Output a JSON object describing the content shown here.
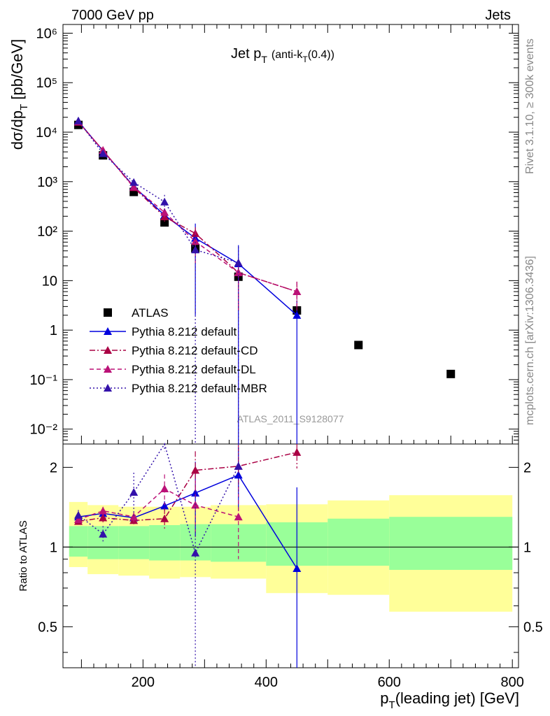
{
  "header": {
    "left": "7000 GeV pp",
    "right": "Jets",
    "side_top": "Rivet 3.1.10, ≥ 300k events",
    "side_bottom": "mcplots.cern.ch [arXiv:1306.3436]",
    "watermark": "ATLAS_2011_S9128077"
  },
  "colors": {
    "atlas": "#000000",
    "default": "#0000dd",
    "cd": "#aa0044",
    "dl": "#bb1177",
    "mbr": "#3311aa",
    "band_outer": "#ffff99",
    "band_inner": "#99ff99"
  },
  "chart_data": [
    {
      "type": "scatter",
      "panel": "main",
      "title": "Jet pT (anti-kT(0.4))",
      "ylabel": "dσ/dpT [pb/GeV]",
      "yscale": "log",
      "ylim": [
        0.005,
        1500000
      ],
      "xlim": [
        70,
        810
      ],
      "ytick_labels": [
        "10⁻²",
        "10⁻¹",
        "1",
        "10",
        "10²",
        "10³",
        "10⁴",
        "10⁵",
        "10⁶"
      ],
      "series": [
        {
          "name": "ATLAS",
          "style": "square",
          "x": [
            95,
            135,
            185,
            235,
            285,
            355,
            450,
            550,
            700
          ],
          "y": [
            14000,
            3400,
            620,
            150,
            45,
            12,
            2.5,
            0.5,
            0.13
          ]
        },
        {
          "name": "Pythia 8.212 default",
          "style": "solid",
          "x": [
            95,
            135,
            185,
            235,
            285,
            355,
            450
          ],
          "y": [
            16500,
            4200,
            800,
            210,
            72,
            22,
            2.0
          ],
          "err": [
            0,
            0,
            80,
            40,
            70,
            30,
            2.0
          ]
        },
        {
          "name": "Pythia 8.212 default-CD",
          "style": "dashdot",
          "x": [
            95,
            135,
            185,
            235,
            285,
            355,
            450
          ],
          "y": [
            16000,
            4300,
            760,
            195,
            90,
            14.5,
            6.0
          ],
          "err": [
            0,
            0,
            60,
            40,
            30,
            12,
            3.5
          ]
        },
        {
          "name": "Pythia 8.212 default-DL",
          "style": "dashed",
          "x": [
            95,
            135,
            185,
            235,
            285,
            355,
            450
          ],
          "y": [
            16200,
            4300,
            780,
            240,
            62,
            14.5,
            6.0
          ],
          "err": [
            0,
            0,
            60,
            50,
            40,
            12,
            3.5
          ]
        },
        {
          "name": "Pythia 8.212 default-MBR",
          "style": "dotted",
          "x": [
            95,
            135,
            185,
            235,
            285,
            355
          ],
          "y": [
            17000,
            3700,
            970,
            390,
            42,
            23
          ],
          "err": [
            0,
            0,
            100,
            150,
            42,
            25
          ]
        }
      ]
    },
    {
      "type": "scatter",
      "panel": "ratio",
      "ylabel": "Ratio to ATLAS",
      "xlabel": "pT(leading jet) [GeV]",
      "yscale": "log",
      "ylim": [
        0.35,
        2.45
      ],
      "xlim": [
        70,
        810
      ],
      "xticks": [
        200,
        400,
        600,
        800
      ],
      "yticks": [
        0.5,
        1,
        2
      ],
      "bands": {
        "edges": [
          80,
          110,
          160,
          210,
          260,
          310,
          400,
          500,
          600,
          800
        ],
        "outer_low": [
          0.84,
          0.79,
          0.78,
          0.76,
          0.77,
          0.76,
          0.67,
          0.66,
          0.57
        ],
        "outer_high": [
          1.48,
          1.44,
          1.42,
          1.42,
          1.42,
          1.44,
          1.45,
          1.5,
          1.57
        ],
        "inner_low": [
          0.92,
          0.9,
          0.9,
          0.89,
          0.89,
          0.88,
          0.85,
          0.85,
          0.82
        ],
        "inner_high": [
          1.2,
          1.2,
          1.2,
          1.21,
          1.22,
          1.22,
          1.24,
          1.28,
          1.3
        ]
      },
      "series": [
        {
          "name": "Pythia 8.212 default",
          "x": [
            95,
            135,
            185,
            235,
            285,
            355,
            450
          ],
          "y": [
            1.3,
            1.34,
            1.29,
            1.43,
            1.6,
            1.87,
            0.83
          ],
          "err": [
            0,
            0,
            0.05,
            0.06,
            0.5,
            0.5,
            0.85
          ]
        },
        {
          "name": "Pythia 8.212 default-CD",
          "x": [
            95,
            135,
            185,
            235,
            285,
            355,
            450
          ],
          "y": [
            1.25,
            1.29,
            1.26,
            1.28,
            1.95,
            2.02,
            2.28
          ],
          "err": [
            0,
            0.05,
            0.06,
            0.12,
            0.35,
            0.4,
            0.3
          ]
        },
        {
          "name": "Pythia 8.212 default-DL",
          "x": [
            95,
            135,
            185,
            235,
            285,
            355
          ],
          "y": [
            1.27,
            1.37,
            1.3,
            1.66,
            1.44,
            1.3
          ],
          "err": [
            0,
            0.05,
            0.06,
            0.22,
            0.35,
            0.4
          ]
        },
        {
          "name": "Pythia 8.212 default-MBR",
          "x": [
            95,
            135,
            185,
            235,
            285,
            355
          ],
          "y": [
            1.32,
            1.12,
            1.61,
            2.6,
            0.95,
            2.02
          ],
          "err": [
            0.06,
            0.08,
            0.3,
            0.3,
            0.6,
            0.5
          ]
        }
      ]
    }
  ]
}
